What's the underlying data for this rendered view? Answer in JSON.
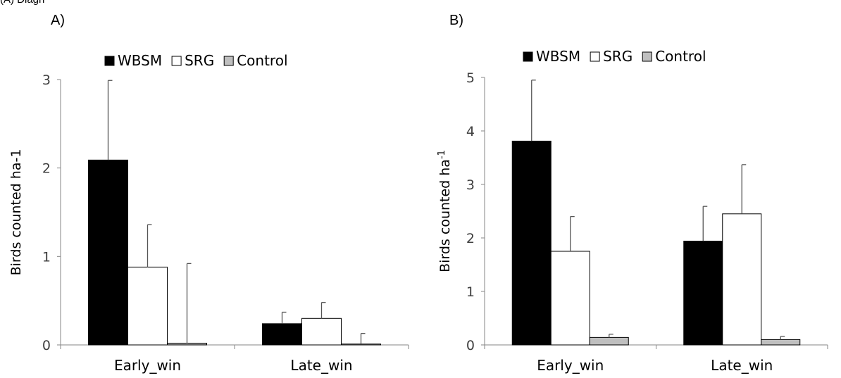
{
  "header_fragment": "(A)  Diagn",
  "colors": {
    "WBSM": "#000000",
    "SRG": "#ffffff",
    "Control": "#bfbfbf"
  },
  "chart_data": [
    {
      "type": "bar",
      "panel_label": "A)",
      "categories": [
        "Early_win",
        "Late_win"
      ],
      "ylabel": "Birds counted ha-1",
      "ylim": [
        0,
        3
      ],
      "yticks": [
        "0",
        "1",
        "2",
        "3"
      ],
      "legend_position": "top",
      "series": [
        {
          "name": "WBSM",
          "values": [
            2.09,
            0.24
          ],
          "errors": [
            0.9,
            0.13
          ]
        },
        {
          "name": "SRG",
          "values": [
            0.88,
            0.3
          ],
          "errors": [
            0.48,
            0.18
          ]
        },
        {
          "name": "Control",
          "values": [
            0.02,
            0.01
          ],
          "errors": [
            0.9,
            0.12
          ]
        }
      ]
    },
    {
      "type": "bar",
      "panel_label": "B)",
      "categories": [
        "Early_win",
        "Late_win"
      ],
      "ylabel": "Birds counted ha",
      "ylabel_sup": "-1",
      "ylim": [
        0,
        5
      ],
      "yticks": [
        "0",
        "1",
        "2",
        "3",
        "4",
        "5"
      ],
      "legend_position": "top",
      "series": [
        {
          "name": "WBSM",
          "values": [
            3.81,
            1.94
          ],
          "errors": [
            1.14,
            0.65
          ]
        },
        {
          "name": "SRG",
          "values": [
            1.75,
            2.45
          ],
          "errors": [
            0.65,
            0.92
          ]
        },
        {
          "name": "Control",
          "values": [
            0.14,
            0.1
          ],
          "errors": [
            0.06,
            0.06
          ]
        }
      ]
    }
  ]
}
